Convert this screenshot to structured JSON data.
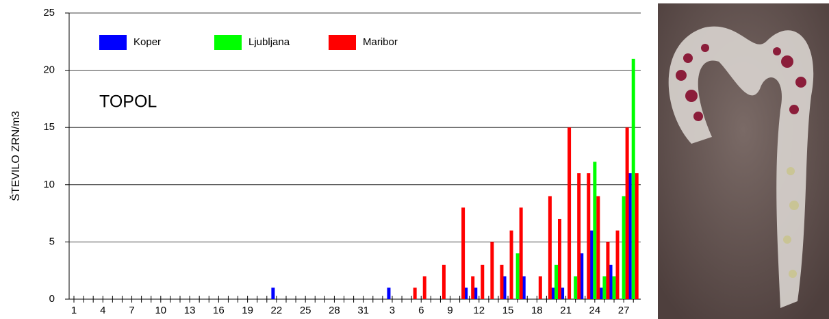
{
  "chart_data": {
    "type": "bar",
    "annotation": "TOPOL",
    "y_label": "ŠTEVILO ZRN/m3",
    "categories": [
      "1",
      null,
      null,
      "4",
      null,
      null,
      "7",
      null,
      null,
      "10",
      null,
      null,
      "13",
      null,
      null,
      "16",
      null,
      null,
      "19",
      null,
      null,
      "22",
      null,
      null,
      "25",
      null,
      null,
      "28",
      null,
      null,
      "31",
      null,
      null,
      "3",
      null,
      null,
      "6",
      null,
      null,
      "9",
      null,
      null,
      "12",
      null,
      null,
      "15",
      null,
      null,
      "18",
      null,
      null,
      "21",
      null,
      null,
      "24",
      null,
      null,
      "27",
      null
    ],
    "series": [
      {
        "name": "Koper",
        "color": "#0000ff",
        "values": [
          0,
          0,
          0,
          0,
          0,
          0,
          0,
          0,
          0,
          0,
          0,
          0,
          0,
          0,
          0,
          0,
          0,
          0,
          0,
          0,
          0,
          1,
          0,
          0,
          0,
          0,
          0,
          0,
          0,
          0,
          0,
          0,
          0,
          1,
          0,
          0,
          0,
          0,
          0,
          0,
          0,
          1,
          1,
          0,
          0,
          2,
          0,
          2,
          0,
          0,
          1,
          1,
          0,
          4,
          6,
          1,
          3,
          0,
          11
        ]
      },
      {
        "name": "Ljubljana",
        "color": "#00ff00",
        "values": [
          0,
          0,
          0,
          0,
          0,
          0,
          0,
          0,
          0,
          0,
          0,
          0,
          0,
          0,
          0,
          0,
          0,
          0,
          0,
          0,
          0,
          0,
          0,
          0,
          0,
          0,
          0,
          0,
          0,
          0,
          0,
          0,
          0,
          0,
          0,
          0,
          0,
          0,
          0,
          0,
          0,
          0,
          0,
          0,
          0,
          0,
          4,
          0,
          0,
          0,
          3,
          0,
          2,
          0,
          12,
          2,
          2,
          9,
          21
        ]
      },
      {
        "name": "Maribor",
        "color": "#ff0000",
        "values": [
          0,
          0,
          0,
          0,
          0,
          0,
          0,
          0,
          0,
          0,
          0,
          0,
          0,
          0,
          0,
          0,
          0,
          0,
          0,
          0,
          0,
          0,
          0,
          0,
          0,
          0,
          0,
          0,
          0,
          0,
          0,
          0,
          0,
          0,
          0,
          1,
          2,
          0,
          3,
          0,
          8,
          2,
          3,
          5,
          3,
          6,
          8,
          0,
          2,
          9,
          7,
          15,
          11,
          11,
          9,
          5,
          6,
          15,
          11
        ]
      }
    ],
    "ylim": [
      0,
      25
    ],
    "yticks": [
      0,
      5,
      10,
      15,
      20,
      25
    ],
    "grid": true
  }
}
